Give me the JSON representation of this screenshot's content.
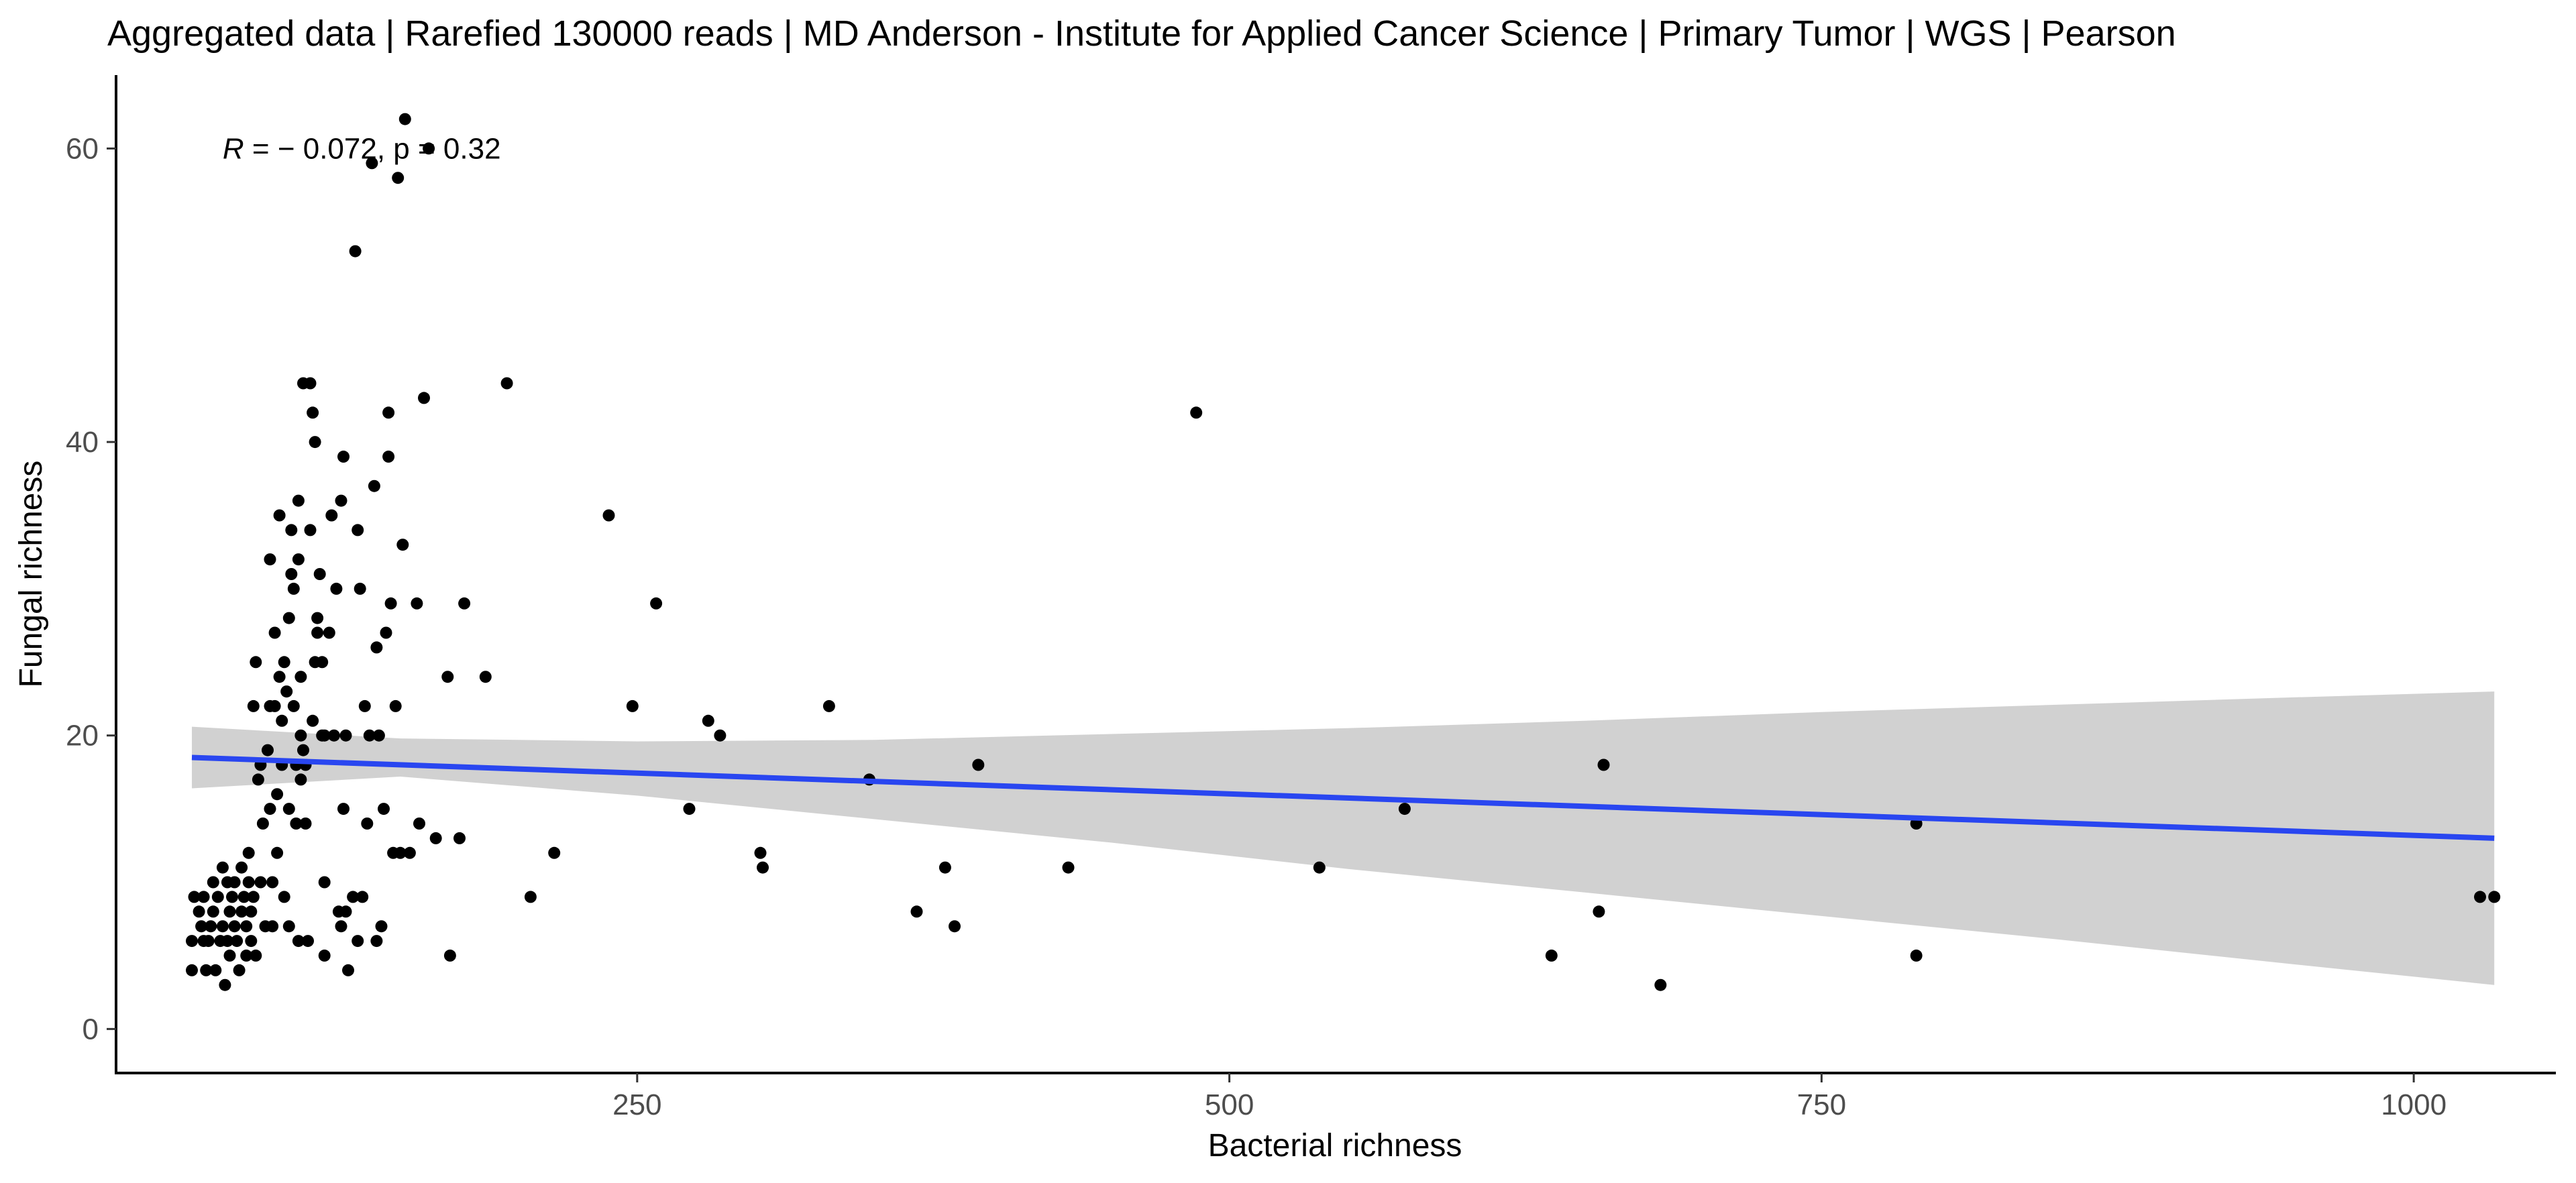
{
  "chart_data": {
    "type": "scatter",
    "title": "Aggregated data | Rarefied 130000 reads | MD Anderson - Institute for Applied Cancer Science | Primary Tumor | WGS | Pearson",
    "xlabel": "Bacterial richness",
    "ylabel": "Fungal richness",
    "xlim": [
      30,
      1060
    ],
    "ylim": [
      -3,
      65
    ],
    "x_ticks": [
      250,
      500,
      750,
      1000
    ],
    "y_ticks": [
      0,
      20,
      40,
      60
    ],
    "grid": false,
    "legend": "none",
    "annotation": {
      "R_symbol": "R",
      "text": " = − 0.072, p = 0.32",
      "x": 75,
      "y": 60
    },
    "colors": {
      "points": "#000000",
      "fit_line": "#2946f0",
      "confidence_band": "#b3b3b3"
    },
    "points": [
      [
        62,
        4
      ],
      [
        62,
        6
      ],
      [
        63,
        9
      ],
      [
        65,
        8
      ],
      [
        66,
        7
      ],
      [
        67,
        9
      ],
      [
        67,
        6
      ],
      [
        68,
        4
      ],
      [
        69,
        6
      ],
      [
        70,
        7
      ],
      [
        71,
        10
      ],
      [
        71,
        8
      ],
      [
        72,
        4
      ],
      [
        73,
        9
      ],
      [
        74,
        6
      ],
      [
        75,
        11
      ],
      [
        75,
        7
      ],
      [
        76,
        3
      ],
      [
        77,
        10
      ],
      [
        77,
        6
      ],
      [
        78,
        8
      ],
      [
        78,
        5
      ],
      [
        79,
        9
      ],
      [
        80,
        10
      ],
      [
        80,
        7
      ],
      [
        81,
        6
      ],
      [
        82,
        4
      ],
      [
        83,
        8
      ],
      [
        83,
        11
      ],
      [
        84,
        9
      ],
      [
        85,
        5
      ],
      [
        85,
        7
      ],
      [
        86,
        12
      ],
      [
        86,
        10
      ],
      [
        87,
        6
      ],
      [
        87,
        8
      ],
      [
        88,
        22
      ],
      [
        88,
        9
      ],
      [
        89,
        25
      ],
      [
        89,
        5
      ],
      [
        90,
        17
      ],
      [
        91,
        18
      ],
      [
        91,
        10
      ],
      [
        92,
        14
      ],
      [
        93,
        7
      ],
      [
        94,
        19
      ],
      [
        95,
        32
      ],
      [
        95,
        22
      ],
      [
        95,
        15
      ],
      [
        96,
        10
      ],
      [
        96,
        7
      ],
      [
        97,
        27
      ],
      [
        97,
        22
      ],
      [
        98,
        16
      ],
      [
        98,
        12
      ],
      [
        99,
        24
      ],
      [
        99,
        35
      ],
      [
        100,
        18
      ],
      [
        100,
        21
      ],
      [
        101,
        25
      ],
      [
        101,
        9
      ],
      [
        102,
        23
      ],
      [
        103,
        28
      ],
      [
        103,
        15
      ],
      [
        103,
        7
      ],
      [
        104,
        31
      ],
      [
        104,
        34
      ],
      [
        105,
        22
      ],
      [
        105,
        30
      ],
      [
        106,
        18
      ],
      [
        106,
        14
      ],
      [
        107,
        36
      ],
      [
        107,
        32
      ],
      [
        107,
        6
      ],
      [
        108,
        24
      ],
      [
        108,
        20
      ],
      [
        108,
        17
      ],
      [
        109,
        19
      ],
      [
        109,
        44
      ],
      [
        110,
        18
      ],
      [
        110,
        14
      ],
      [
        111,
        6
      ],
      [
        112,
        44
      ],
      [
        112,
        34
      ],
      [
        113,
        42
      ],
      [
        113,
        21
      ],
      [
        114,
        40
      ],
      [
        114,
        25
      ],
      [
        115,
        27
      ],
      [
        115,
        28
      ],
      [
        116,
        31
      ],
      [
        117,
        25
      ],
      [
        117,
        20
      ],
      [
        118,
        20
      ],
      [
        118,
        10
      ],
      [
        118,
        5
      ],
      [
        120,
        27
      ],
      [
        121,
        35
      ],
      [
        122,
        20
      ],
      [
        123,
        30
      ],
      [
        124,
        8
      ],
      [
        125,
        36
      ],
      [
        125,
        7
      ],
      [
        126,
        39
      ],
      [
        126,
        15
      ],
      [
        127,
        20
      ],
      [
        127,
        8
      ],
      [
        128,
        4
      ],
      [
        130,
        9
      ],
      [
        131,
        53
      ],
      [
        132,
        34
      ],
      [
        132,
        6
      ],
      [
        133,
        30
      ],
      [
        134,
        9
      ],
      [
        135,
        22
      ],
      [
        136,
        14
      ],
      [
        137,
        20
      ],
      [
        138,
        59
      ],
      [
        139,
        37
      ],
      [
        140,
        26
      ],
      [
        140,
        6
      ],
      [
        141,
        20
      ],
      [
        142,
        7
      ],
      [
        143,
        15
      ],
      [
        144,
        27
      ],
      [
        145,
        42
      ],
      [
        145,
        39
      ],
      [
        146,
        29
      ],
      [
        147,
        12
      ],
      [
        148,
        22
      ],
      [
        149,
        58
      ],
      [
        150,
        12
      ],
      [
        151,
        33
      ],
      [
        152,
        62
      ],
      [
        154,
        12
      ],
      [
        157,
        29
      ],
      [
        158,
        14
      ],
      [
        160,
        43
      ],
      [
        162,
        60
      ],
      [
        165,
        13
      ],
      [
        170,
        24
      ],
      [
        171,
        5
      ],
      [
        175,
        13
      ],
      [
        177,
        29
      ],
      [
        186,
        24
      ],
      [
        195,
        44
      ],
      [
        205,
        9
      ],
      [
        215,
        12
      ],
      [
        238,
        35
      ],
      [
        248,
        22
      ],
      [
        258,
        29
      ],
      [
        272,
        15
      ],
      [
        280,
        21
      ],
      [
        285,
        20
      ],
      [
        302,
        12
      ],
      [
        303,
        11
      ],
      [
        331,
        22
      ],
      [
        348,
        17
      ],
      [
        368,
        8
      ],
      [
        380,
        11
      ],
      [
        384,
        7
      ],
      [
        394,
        18
      ],
      [
        432,
        11
      ],
      [
        486,
        42
      ],
      [
        538,
        11
      ],
      [
        574,
        15
      ],
      [
        636,
        5
      ],
      [
        656,
        8
      ],
      [
        658,
        18
      ],
      [
        682,
        3
      ],
      [
        790,
        5
      ],
      [
        790,
        14
      ],
      [
        1028,
        9
      ],
      [
        1034,
        9
      ]
    ],
    "fit_line": {
      "x": [
        62,
        1034
      ],
      "y": [
        18.5,
        13.0
      ]
    },
    "confidence_band": {
      "x": [
        62,
        150,
        250,
        350,
        450,
        550,
        650,
        750,
        850,
        950,
        1034
      ],
      "upper": [
        20.6,
        19.8,
        19.6,
        19.7,
        20.1,
        20.5,
        21.0,
        21.6,
        22.1,
        22.6,
        23.0
      ],
      "lower": [
        16.4,
        17.2,
        15.9,
        14.3,
        12.7,
        10.9,
        9.3,
        7.7,
        6.1,
        4.4,
        3.0
      ]
    }
  }
}
